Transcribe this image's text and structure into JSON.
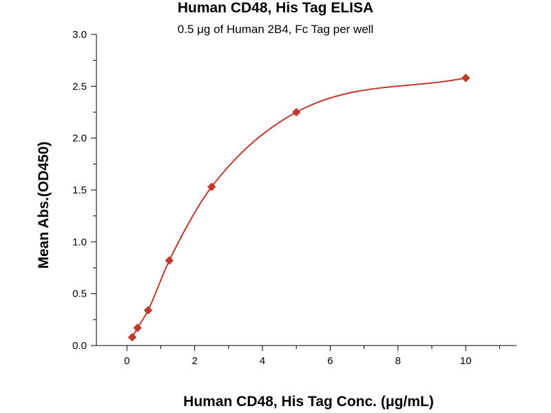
{
  "chart_data": {
    "type": "scatter",
    "title": "Human CD48, His Tag ELISA",
    "subtitle": "0.5 μg of Human 2B4, Fc Tag per well",
    "xlabel": "Human CD48, His Tag Conc. (μg/mL)",
    "ylabel": "Mean Abs.(OD450)",
    "xlim": [
      -0.9,
      11.5
    ],
    "ylim": [
      0,
      3.0
    ],
    "xticks": [
      0,
      2,
      4,
      6,
      8,
      10
    ],
    "yticks": [
      0.0,
      0.5,
      1.0,
      1.5,
      2.0,
      2.5,
      3.0
    ],
    "grid": false,
    "series": [
      {
        "marker": "diamond",
        "color": "#c0392b",
        "x": [
          0.156,
          0.313,
          0.625,
          1.25,
          2.5,
          5.0,
          10.0
        ],
        "y": [
          0.08,
          0.17,
          0.34,
          0.82,
          1.53,
          2.25,
          2.58
        ],
        "fit_curve": true
      }
    ]
  }
}
